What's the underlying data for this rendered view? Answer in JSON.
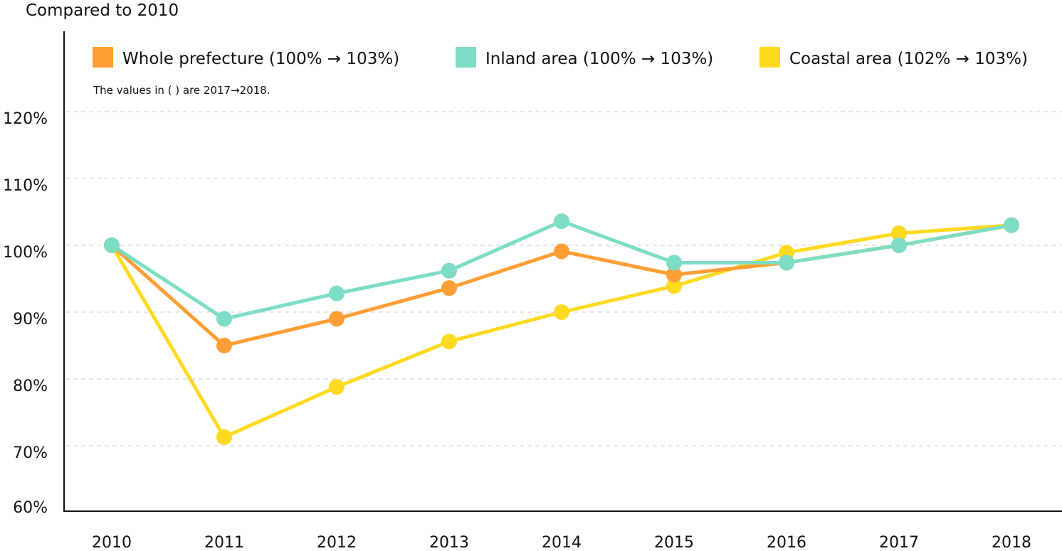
{
  "chart_data": {
    "type": "line",
    "ylabel": "Compared to 2010",
    "note": "The values in ( ) are 2017→2018.",
    "categories": [
      "2010",
      "2011",
      "2012",
      "2013",
      "2014",
      "2015",
      "2016",
      "2017",
      "2018"
    ],
    "y_ticks": [
      "60%",
      "70%",
      "80%",
      "90%",
      "100%",
      "110%",
      "120%"
    ],
    "y_tick_values": [
      60,
      70,
      80,
      90,
      100,
      110,
      120
    ],
    "ylim": [
      60,
      126
    ],
    "grid": "horizontal dashed",
    "legend_position": "top",
    "series": [
      {
        "name": "Whole prefecture (100% → 103%)",
        "color": "#FF9E35",
        "values": [
          100,
          85.0,
          89.0,
          93.6,
          99.1,
          95.6,
          97.4,
          100,
          103
        ]
      },
      {
        "name": "Inland area (100% → 103%)",
        "color": "#7DDCC4",
        "values": [
          100,
          89.0,
          92.8,
          96.2,
          103.6,
          97.4,
          97.4,
          100,
          103
        ]
      },
      {
        "name": "Coastal area (102% → 103%)",
        "color": "#FFD920",
        "values": [
          100,
          71.3,
          78.8,
          85.6,
          90.0,
          93.9,
          98.9,
          101.8,
          103
        ]
      }
    ]
  }
}
